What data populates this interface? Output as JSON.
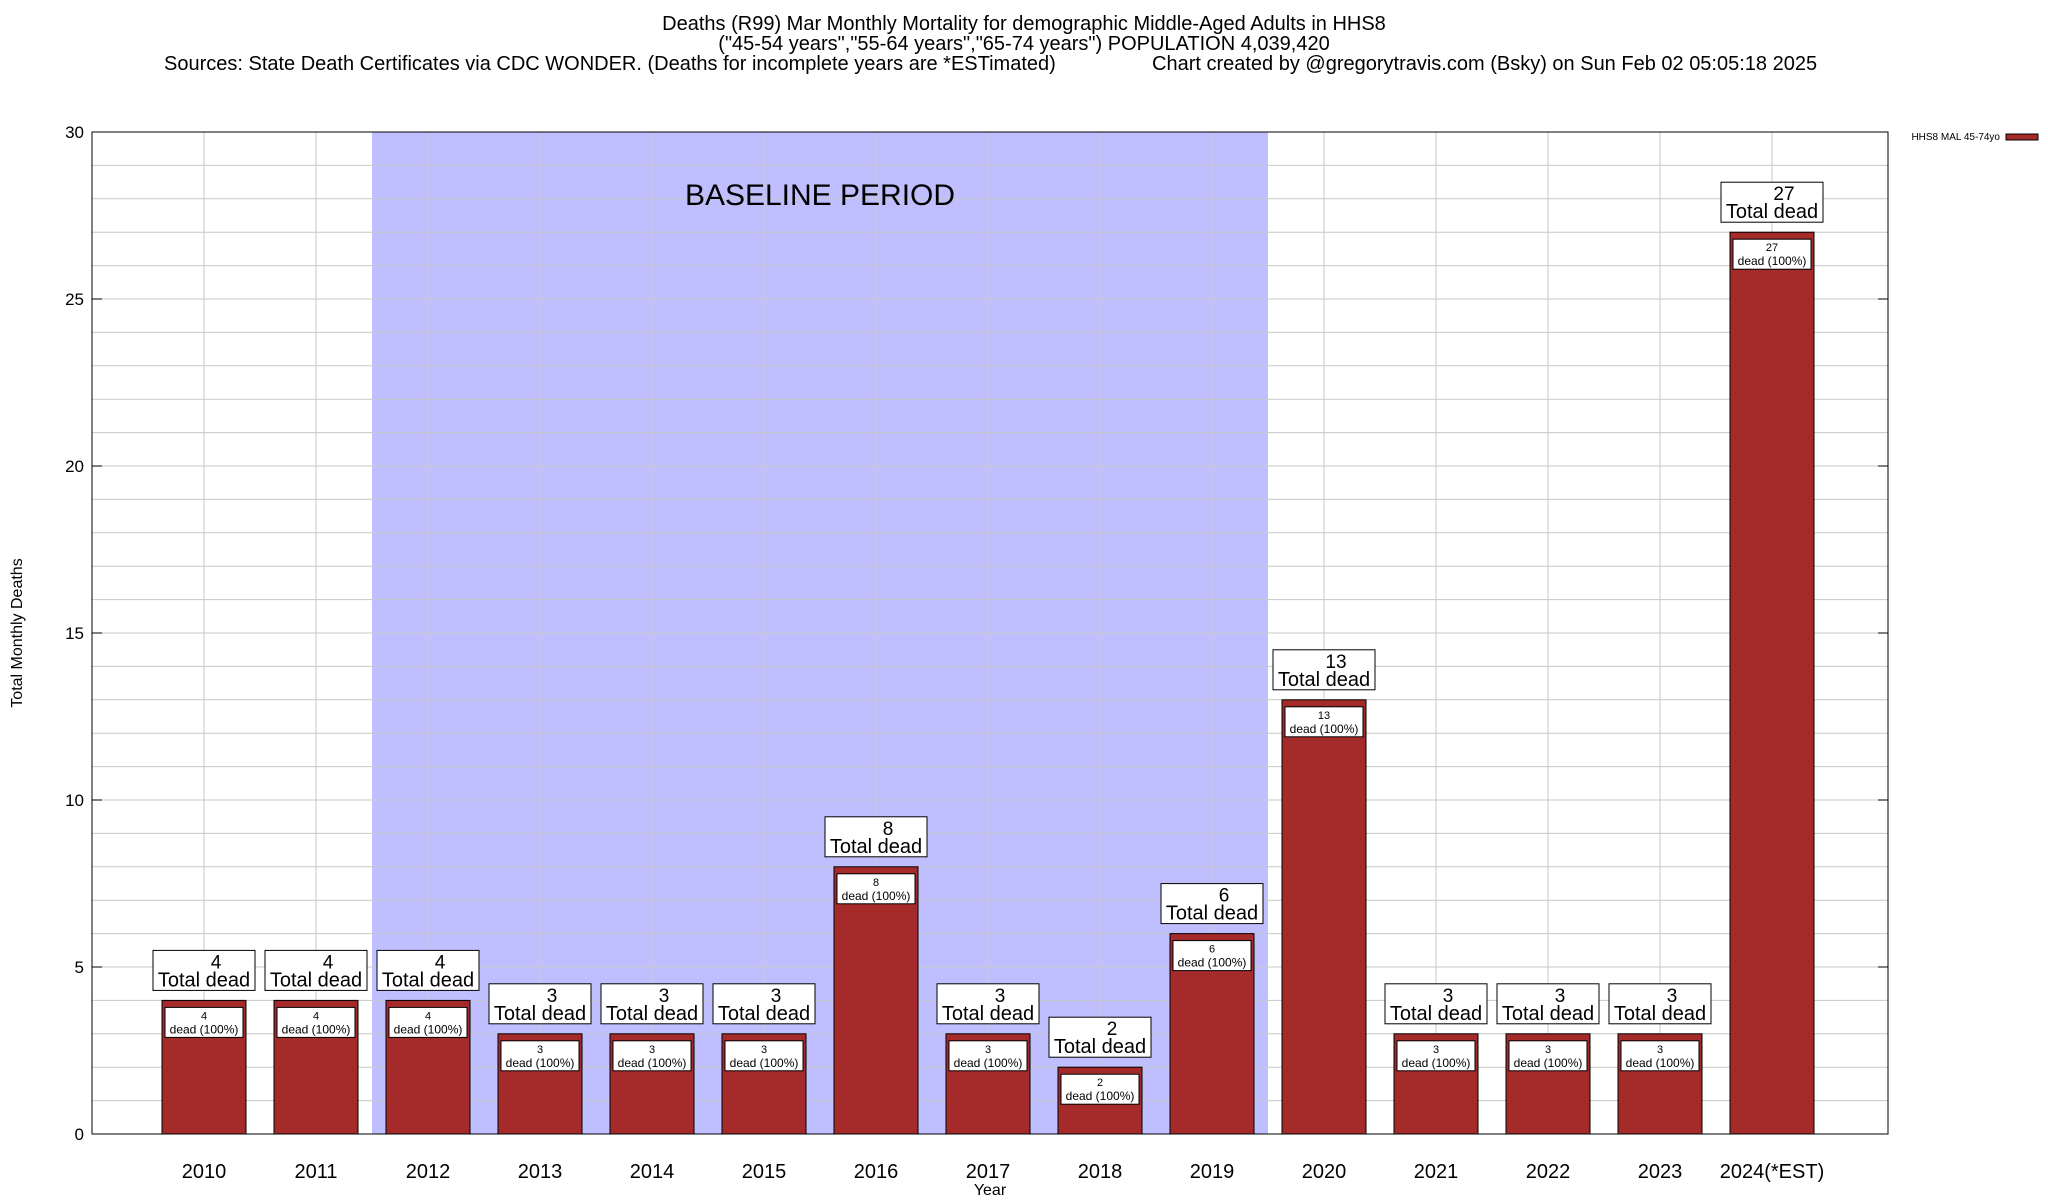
{
  "header": {
    "title": "Deaths (R99) Mar Monthly Mortality for demographic Middle-Aged Adults in HHS8",
    "subtitle": "(\"45-54 years\",\"55-64 years\",\"65-74 years\") POPULATION 4,039,420",
    "sources": "Sources: State Death Certificates via CDC WONDER. (Deaths for incomplete years are *ESTimated)",
    "credit": "Chart created by @gregorytravis.com (Bsky) on Sun Feb 02 05:05:18 2025"
  },
  "chart_data": {
    "type": "bar",
    "xlabel": "Year",
    "ylabel": "Total Monthly Deaths",
    "ylim": [
      0,
      30
    ],
    "yticks": [
      0,
      5,
      10,
      15,
      20,
      25,
      30
    ],
    "minor_grid_step": 1,
    "grid": true,
    "legend": {
      "placement": "top-right",
      "label": "HHS8 MAL 45-74yo"
    },
    "categories": [
      "2010",
      "2011",
      "2012",
      "2013",
      "2014",
      "2015",
      "2016",
      "2017",
      "2018",
      "2019",
      "2020",
      "2021",
      "2022",
      "2023",
      "2024(*EST)"
    ],
    "series": [
      {
        "name": "HHS8 MAL 45-74yo",
        "values": [
          4,
          4,
          4,
          3,
          3,
          3,
          8,
          3,
          2,
          6,
          13,
          3,
          3,
          3,
          27
        ]
      }
    ],
    "total_label_suffix": "Total dead",
    "inner_label_suffix": "dead (100%)",
    "baseline": {
      "label": "BASELINE PERIOD",
      "from": "2012",
      "to": "2019"
    },
    "colors": {
      "bar": "#a52a2a",
      "baseline": "#bfbfff",
      "grid": "#c8c8c8"
    }
  }
}
